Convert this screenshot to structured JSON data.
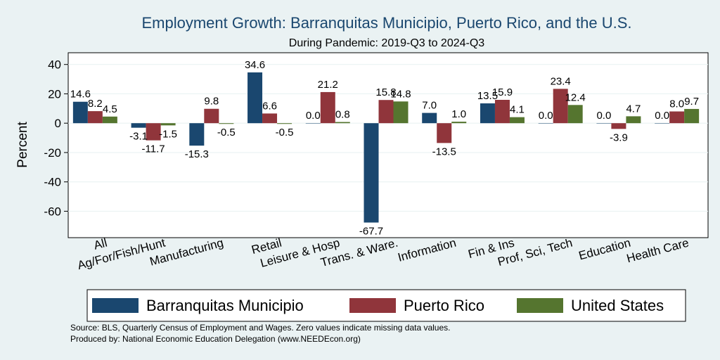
{
  "chart_data": {
    "type": "bar",
    "title": "Employment Growth: Barranquitas Municipio, Puerto Rico, and the U.S.",
    "subtitle": "During Pandemic: 2019-Q3 to 2024-Q3",
    "ylabel": "Percent",
    "xlabel": "",
    "ylim": [
      -78,
      48
    ],
    "yticks": [
      40,
      20,
      0,
      -20,
      -40,
      -60
    ],
    "grid": true,
    "legend_position": "bottom",
    "categories": [
      "All",
      "Ag/For/Fish/Hunt",
      "Manufacturing",
      "Retail",
      "Leisure & Hosp",
      "Trans. & Ware.",
      "Information",
      "Fin & Ins",
      "Prof, Sci, Tech",
      "Education",
      "Health Care"
    ],
    "series": [
      {
        "name": "Barranquitas Municipio",
        "color": "#1a476f",
        "values": [
          14.6,
          -3.1,
          -15.3,
          34.6,
          0.0,
          -67.7,
          7.0,
          13.5,
          0.0,
          0.0,
          0.0
        ]
      },
      {
        "name": "Puerto Rico",
        "color": "#90353b",
        "values": [
          8.2,
          -11.7,
          9.8,
          6.6,
          21.2,
          15.8,
          -13.5,
          15.9,
          23.4,
          -3.9,
          8.0
        ]
      },
      {
        "name": "United States",
        "color": "#55752f",
        "values": [
          4.5,
          -1.5,
          -0.5,
          -0.5,
          0.8,
          14.8,
          1.0,
          4.1,
          12.4,
          4.7,
          9.7
        ]
      }
    ],
    "notes": [
      "Source: BLS, Quarterly Census of Employment and Wages. Zero values indicate missing data values.",
      "Produced by: National Economic Education Delegation (www.NEEDEcon.org)"
    ]
  }
}
